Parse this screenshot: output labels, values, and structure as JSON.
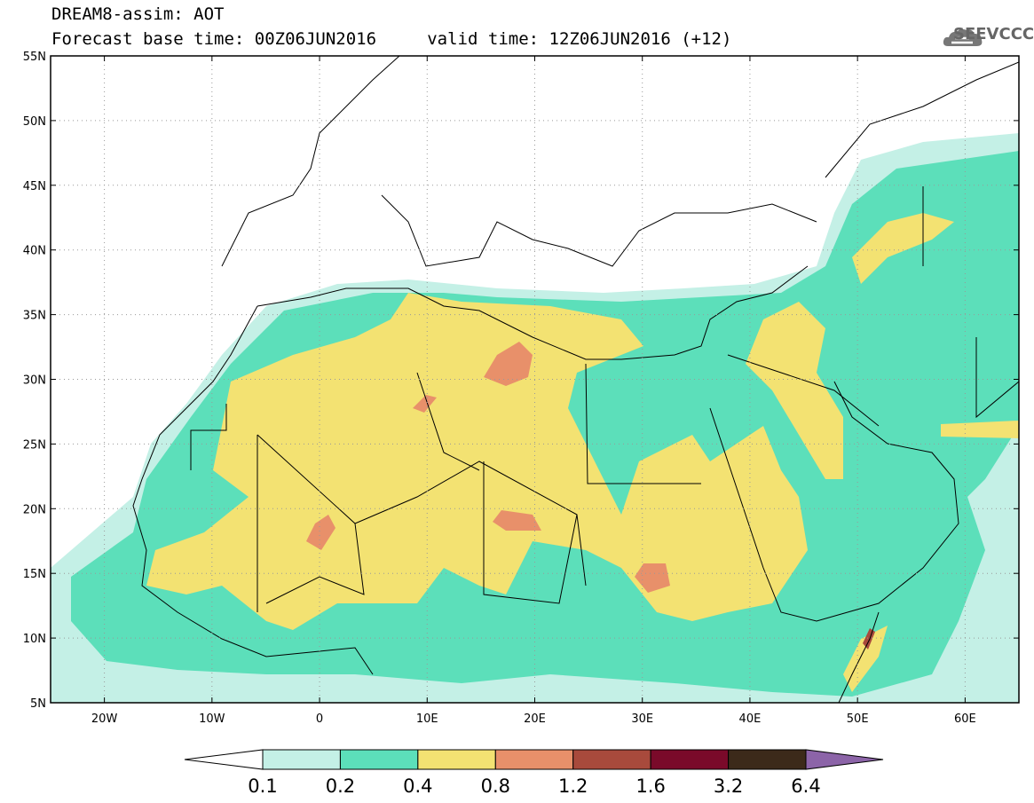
{
  "header": {
    "title_line1": "DREAM8-assim: AOT",
    "title_line2": "Forecast base time: 00Z06JUN2016     valid time: 12Z06JUN2016 (+12)",
    "logo_text": "SEEVCCC",
    "logo_icon": "cloud-icon"
  },
  "map": {
    "projection": "lat-lon",
    "lon_range": [
      -25,
      65
    ],
    "lat_range": [
      5,
      55
    ],
    "lat_ticks": [
      {
        "value": 55,
        "label": "55N"
      },
      {
        "value": 50,
        "label": "50N"
      },
      {
        "value": 45,
        "label": "45N"
      },
      {
        "value": 40,
        "label": "40N"
      },
      {
        "value": 35,
        "label": "35N"
      },
      {
        "value": 30,
        "label": "30N"
      },
      {
        "value": 25,
        "label": "25N"
      },
      {
        "value": 20,
        "label": "20N"
      },
      {
        "value": 15,
        "label": "15N"
      },
      {
        "value": 10,
        "label": "10N"
      },
      {
        "value": 5,
        "label": "5N"
      }
    ],
    "lon_ticks": [
      {
        "value": -20,
        "label": "20W"
      },
      {
        "value": -10,
        "label": "10W"
      },
      {
        "value": 0,
        "label": "0"
      },
      {
        "value": 10,
        "label": "10E"
      },
      {
        "value": 20,
        "label": "20E"
      },
      {
        "value": 30,
        "label": "30E"
      },
      {
        "value": 40,
        "label": "40E"
      },
      {
        "value": 50,
        "label": "50E"
      },
      {
        "value": 60,
        "label": "60E"
      }
    ],
    "gridlines": "dotted"
  },
  "colorbar": {
    "labels": [
      "0.1",
      "0.2",
      "0.4",
      "0.8",
      "1.2",
      "1.6",
      "3.2",
      "6.4"
    ],
    "colors": [
      "#ffffff",
      "#c4f0e6",
      "#5cdfba",
      "#f3e272",
      "#e8906a",
      "#a84a3c",
      "#7a0a2a",
      "#3c2a1a",
      "#8c64a8"
    ]
  }
}
